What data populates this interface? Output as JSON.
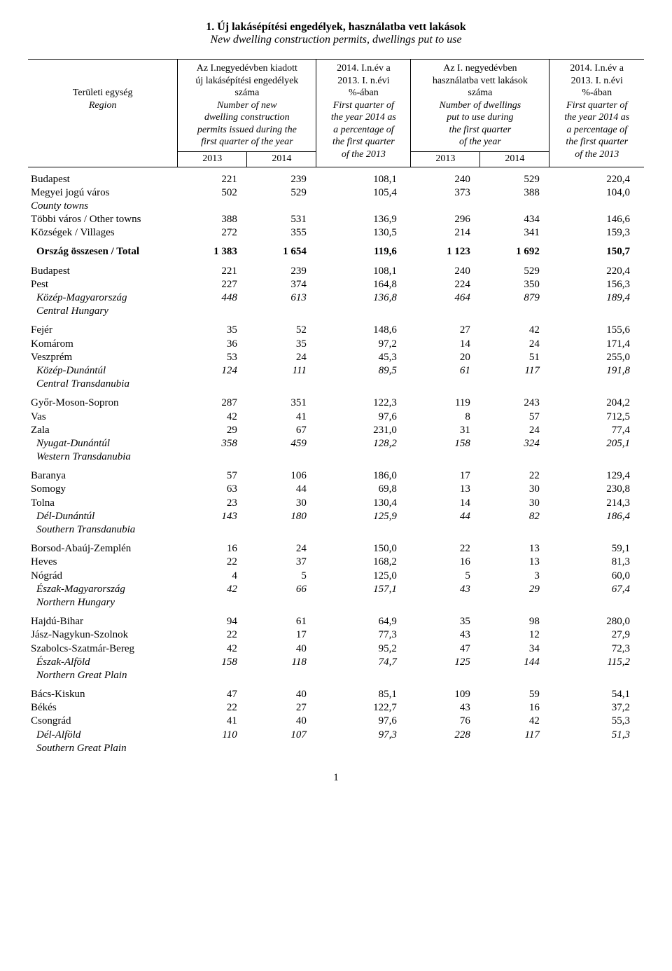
{
  "title": {
    "main": "1. Új lakásépítési engedélyek, használatba vett lakások",
    "sub": "New dwelling construction permits, dwellings put to use"
  },
  "header": {
    "col0": {
      "l1": "",
      "l2": "",
      "l3": "Területi egység",
      "l4": "Region"
    },
    "col1": {
      "l1": "Az I.negyedévben kiadott",
      "l2": "új lakásépítési engedélyek",
      "l3": "száma",
      "l4": "Number of new",
      "l5": "dwelling construction",
      "l6": "permits issued during the",
      "l7": "first quarter of the year"
    },
    "col2": {
      "l1": "2014. I.n.év a",
      "l2": "2013. I. n.évi",
      "l3": "%-ában",
      "l4": "First quarter of",
      "l5": "the year 2014 as",
      "l6": "a percentage of",
      "l7": "the first quarter",
      "l8": "of the 2013"
    },
    "col3": {
      "l1": "Az I. negyedévben",
      "l2": "használatba vett lakások",
      "l3": "száma",
      "l4": "Number of dwellings",
      "l5": "put to use during",
      "l6": "the first quarter",
      "l7": "of the year"
    },
    "col4": {
      "l1": "2014. I.n.év a",
      "l2": "2013. I. n.évi",
      "l3": "%-ában",
      "l4": "First quarter of",
      "l5": "the year 2014 as",
      "l6": "a percentage of",
      "l7": "the first quarter",
      "l8": "of the 2013"
    },
    "years": {
      "y2013": "2013",
      "y2014": "2014"
    }
  },
  "sections": [
    {
      "rows": [
        {
          "label": "Budapest",
          "v": [
            "221",
            "239",
            "108,1",
            "240",
            "529",
            "220,4"
          ]
        },
        {
          "label": "Megyei jogú város",
          "v": [
            "502",
            "529",
            "105,4",
            "373",
            "388",
            "104,0"
          ]
        },
        {
          "label": "County towns",
          "sub": true
        },
        {
          "label": "Többi város / Other towns",
          "v": [
            "388",
            "531",
            "136,9",
            "296",
            "434",
            "146,6"
          ]
        },
        {
          "label": "Községek / Villages",
          "v": [
            "272",
            "355",
            "130,5",
            "214",
            "341",
            "159,3"
          ]
        }
      ]
    },
    {
      "total": {
        "label": "Ország összesen / Total",
        "v": [
          "1 383",
          "1 654",
          "119,6",
          "1 123",
          "1 692",
          "150,7"
        ]
      }
    },
    {
      "rows": [
        {
          "label": "Budapest",
          "v": [
            "221",
            "239",
            "108,1",
            "240",
            "529",
            "220,4"
          ]
        },
        {
          "label": "Pest",
          "v": [
            "227",
            "374",
            "164,8",
            "224",
            "350",
            "156,3"
          ]
        },
        {
          "label": "Közép-Magyarország",
          "indent": true,
          "italic": true,
          "v": [
            "448",
            "613",
            "136,8",
            "464",
            "879",
            "189,4"
          ]
        },
        {
          "label": "Central Hungary",
          "indent": true,
          "sub": true
        }
      ]
    },
    {
      "rows": [
        {
          "label": "Fejér",
          "v": [
            "35",
            "52",
            "148,6",
            "27",
            "42",
            "155,6"
          ]
        },
        {
          "label": "Komárom",
          "v": [
            "36",
            "35",
            "97,2",
            "14",
            "24",
            "171,4"
          ]
        },
        {
          "label": "Veszprém",
          "v": [
            "53",
            "24",
            "45,3",
            "20",
            "51",
            "255,0"
          ]
        },
        {
          "label": "Közép-Dunántúl",
          "indent": true,
          "italic": true,
          "v": [
            "124",
            "111",
            "89,5",
            "61",
            "117",
            "191,8"
          ]
        },
        {
          "label": "Central Transdanubia",
          "indent": true,
          "sub": true
        }
      ]
    },
    {
      "rows": [
        {
          "label": "Győr-Moson-Sopron",
          "v": [
            "287",
            "351",
            "122,3",
            "119",
            "243",
            "204,2"
          ]
        },
        {
          "label": "Vas",
          "v": [
            "42",
            "41",
            "97,6",
            "8",
            "57",
            "712,5"
          ]
        },
        {
          "label": "Zala",
          "v": [
            "29",
            "67",
            "231,0",
            "31",
            "24",
            "77,4"
          ]
        },
        {
          "label": "Nyugat-Dunántúl",
          "indent": true,
          "italic": true,
          "v": [
            "358",
            "459",
            "128,2",
            "158",
            "324",
            "205,1"
          ]
        },
        {
          "label": "Western Transdanubia",
          "indent": true,
          "sub": true
        }
      ]
    },
    {
      "rows": [
        {
          "label": "Baranya",
          "v": [
            "57",
            "106",
            "186,0",
            "17",
            "22",
            "129,4"
          ]
        },
        {
          "label": "Somogy",
          "v": [
            "63",
            "44",
            "69,8",
            "13",
            "30",
            "230,8"
          ]
        },
        {
          "label": "Tolna",
          "v": [
            "23",
            "30",
            "130,4",
            "14",
            "30",
            "214,3"
          ]
        },
        {
          "label": "Dél-Dunántúl",
          "indent": true,
          "italic": true,
          "v": [
            "143",
            "180",
            "125,9",
            "44",
            "82",
            "186,4"
          ]
        },
        {
          "label": "Southern Transdanubia",
          "indent": true,
          "sub": true
        }
      ]
    },
    {
      "rows": [
        {
          "label": "Borsod-Abaúj-Zemplén",
          "v": [
            "16",
            "24",
            "150,0",
            "22",
            "13",
            "59,1"
          ]
        },
        {
          "label": "Heves",
          "v": [
            "22",
            "37",
            "168,2",
            "16",
            "13",
            "81,3"
          ]
        },
        {
          "label": "Nógrád",
          "v": [
            "4",
            "5",
            "125,0",
            "5",
            "3",
            "60,0"
          ]
        },
        {
          "label": "Észak-Magyarország",
          "indent": true,
          "italic": true,
          "v": [
            "42",
            "66",
            "157,1",
            "43",
            "29",
            "67,4"
          ]
        },
        {
          "label": "Northern Hungary",
          "indent": true,
          "sub": true
        }
      ]
    },
    {
      "rows": [
        {
          "label": "Hajdú-Bihar",
          "v": [
            "94",
            "61",
            "64,9",
            "35",
            "98",
            "280,0"
          ]
        },
        {
          "label": "Jász-Nagykun-Szolnok",
          "v": [
            "22",
            "17",
            "77,3",
            "43",
            "12",
            "27,9"
          ]
        },
        {
          "label": "Szabolcs-Szatmár-Bereg",
          "v": [
            "42",
            "40",
            "95,2",
            "47",
            "34",
            "72,3"
          ]
        },
        {
          "label": "Észak-Alföld",
          "indent": true,
          "italic": true,
          "v": [
            "158",
            "118",
            "74,7",
            "125",
            "144",
            "115,2"
          ]
        },
        {
          "label": "Northern Great Plain",
          "indent": true,
          "sub": true
        }
      ]
    },
    {
      "rows": [
        {
          "label": "Bács-Kiskun",
          "v": [
            "47",
            "40",
            "85,1",
            "109",
            "59",
            "54,1"
          ]
        },
        {
          "label": "Békés",
          "v": [
            "22",
            "27",
            "122,7",
            "43",
            "16",
            "37,2"
          ]
        },
        {
          "label": "Csongrád",
          "v": [
            "41",
            "40",
            "97,6",
            "76",
            "42",
            "55,3"
          ]
        },
        {
          "label": "Dél-Alföld",
          "indent": true,
          "italic": true,
          "v": [
            "110",
            "107",
            "97,3",
            "228",
            "117",
            "51,3"
          ]
        },
        {
          "label": "Southern Great Plain",
          "indent": true,
          "sub": true
        }
      ]
    }
  ],
  "pagenum": "1"
}
